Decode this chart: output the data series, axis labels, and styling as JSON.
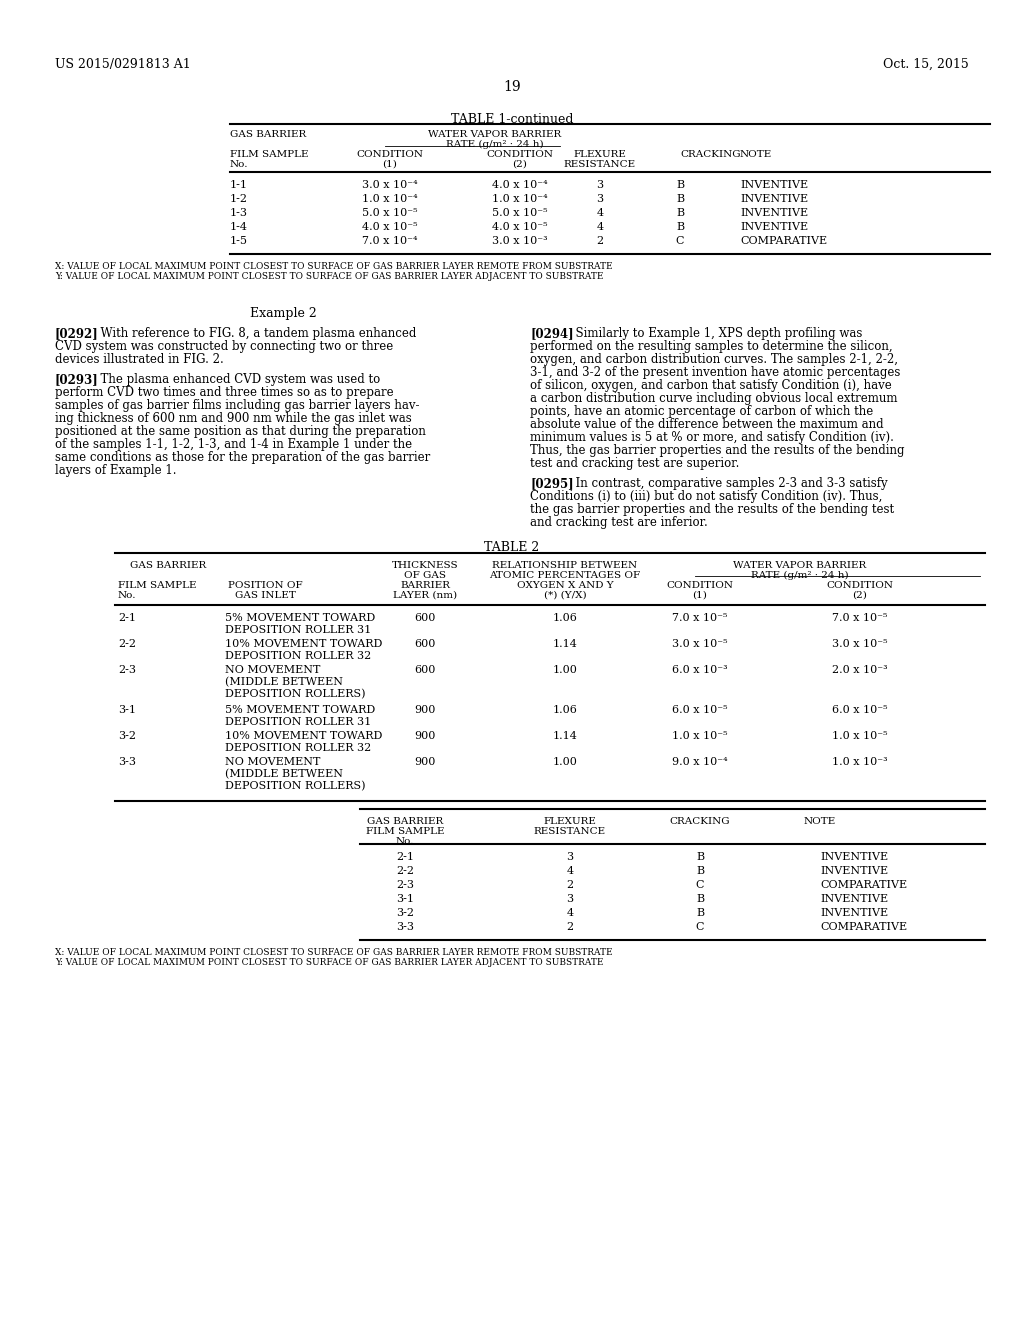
{
  "page_header_left": "US 2015/0291813 A1",
  "page_header_right": "Oct. 15, 2015",
  "page_number": "19",
  "bg_color": "#ffffff",
  "table1_continued_title": "TABLE 1-continued",
  "table1_col_headers_row1": [
    "GAS BARRIER",
    "",
    "WATER VAPOR BARRIER\nRATE (g/m² · 24 h)",
    "",
    "",
    ""
  ],
  "table1_col_headers_row2": [
    "FILM SAMPLE\nNo.",
    "CONDITION\n(1)",
    "CONDITION\n(2)",
    "FLEXURE\nRESISTANCE",
    "CRACKING",
    "NOTE"
  ],
  "table1_data": [
    [
      "1-1",
      "3.0 x 10⁻⁴",
      "4.0 x 10⁻⁴",
      "3",
      "B",
      "INVENTIVE"
    ],
    [
      "1-2",
      "1.0 x 10⁻⁴",
      "1.0 x 10⁻⁴",
      "3",
      "B",
      "INVENTIVE"
    ],
    [
      "1-3",
      "5.0 x 10⁻⁵",
      "5.0 x 10⁻⁵",
      "4",
      "B",
      "INVENTIVE"
    ],
    [
      "1-4",
      "4.0 x 10⁻⁵",
      "4.0 x 10⁻⁵",
      "4",
      "B",
      "INVENTIVE"
    ],
    [
      "1-5",
      "7.0 x 10⁻⁴",
      "3.0 x 10⁻³",
      "2",
      "C",
      "COMPARATIVE"
    ]
  ],
  "table1_footnotes": [
    "X: VALUE OF LOCAL MAXIMUM POINT CLOSEST TO SURFACE OF GAS BARRIER LAYER REMOTE FROM SUBSTRATE",
    "Y: VALUE OF LOCAL MAXIMUM POINT CLOSEST TO SURFACE OF GAS BARRIER LAYER ADJACENT TO SUBSTRATE"
  ],
  "example2_title": "Example 2",
  "para_0292": "[0292]   With reference to FIG. 8, a tandem plasma enhanced CVD system was constructed by connecting two or three devices illustrated in FIG. 2.",
  "para_0293": "[0293]   The plasma enhanced CVD system was used to perform CVD two times and three times so as to prepare samples of gas barrier films including gas barrier layers having thickness of 600 nm and 900 nm while the gas inlet was positioned at the same position as that during the preparation of the samples 1-1, 1-2, 1-3, and 1-4 in Example 1 under the same conditions as those for the preparation of the gas barrier layers of Example 1.",
  "para_0294": "[0294]   Similarly to Example 1, XPS depth profiling was performed on the resulting samples to determine the silicon, oxygen, and carbon distribution curves. The samples 2-1, 2-2, 3-1, and 3-2 of the present invention have atomic percentages of silicon, oxygen, and carbon that satisfy Condition (i), have a carbon distribution curve including obvious local extremum points, have an atomic percentage of carbon of which the absolute value of the difference between the maximum and minimum values is 5 at % or more, and satisfy Condition (iv). Thus, the gas barrier properties and the results of the bending test and cracking test are superior.",
  "para_0295": "[0295]   In contrast, comparative samples 2-3 and 3-3 satisfy Conditions (i) to (iii) but do not satisfy Condition (iv). Thus, the gas barrier properties and the results of the bending test and cracking test are inferior.",
  "table2_title": "TABLE 2",
  "table2_col_headers_row1": [
    "GAS BARRIER",
    "",
    "THICKNESS\nOF GAS",
    "RELATIONSHIP BETWEEN\nATOMIC PERCENTAGES OF",
    "WATER VAPOR BARRIER\nRATE (g/m² · 24 h)",
    ""
  ],
  "table2_col_headers_row2": [
    "FILM SAMPLE\nNo.",
    "POSITION OF\nGAS INLET",
    "BARRIER\nLAYER (nm)",
    "OXYGEN X AND Y\n(*) (Y/X)",
    "CONDITION\n(1)",
    "CONDITION\n(2)"
  ],
  "table2_data": [
    [
      "2-1",
      "5% MOVEMENT TOWARD\nDEPOSITION ROLLER 31",
      "600",
      "1.06",
      "7.0 x 10⁻⁵",
      "7.0 x 10⁻⁵"
    ],
    [
      "2-2",
      "10% MOVEMENT TOWARD\nDEPOSITION ROLLER 32",
      "600",
      "1.14",
      "3.0 x 10⁻⁵",
      "3.0 x 10⁻⁵"
    ],
    [
      "2-3",
      "NO MOVEMENT\n(MIDDLE BETWEEN\nDEPOSITION ROLLERS)",
      "600",
      "1.00",
      "6.0 x 10⁻³",
      "2.0 x 10⁻³"
    ],
    [
      "3-1",
      "5% MOVEMENT TOWARD\nDEPOSITION ROLLER 31",
      "900",
      "1.06",
      "6.0 x 10⁻⁵",
      "6.0 x 10⁻⁵"
    ],
    [
      "3-2",
      "10% MOVEMENT TOWARD\nDEPOSITION ROLLER 32",
      "900",
      "1.14",
      "1.0 x 10⁻⁵",
      "1.0 x 10⁻⁵"
    ],
    [
      "3-3",
      "NO MOVEMENT\n(MIDDLE BETWEEN\nDEPOSITION ROLLERS)",
      "900",
      "1.00",
      "9.0 x 10⁻⁴",
      "1.0 x 10⁻³"
    ]
  ],
  "table3_col_headers": [
    "GAS BARRIER\nFILM SAMPLE\nNo.",
    "FLEXURE\nRESISTANCE",
    "CRACKING",
    "NOTE"
  ],
  "table3_data": [
    [
      "2-1",
      "3",
      "B",
      "INVENTIVE"
    ],
    [
      "2-2",
      "4",
      "B",
      "INVENTIVE"
    ],
    [
      "2-3",
      "2",
      "C",
      "COMPARATIVE"
    ],
    [
      "3-1",
      "3",
      "B",
      "INVENTIVE"
    ],
    [
      "3-2",
      "4",
      "B",
      "INVENTIVE"
    ],
    [
      "3-3",
      "2",
      "C",
      "COMPARATIVE"
    ]
  ],
  "table2_footnotes": [
    "X: VALUE OF LOCAL MAXIMUM POINT CLOSEST TO SURFACE OF GAS BARRIER LAYER REMOTE FROM SUBSTRATE",
    "Y: VALUE OF LOCAL MAXIMUM POINT CLOSEST TO SURFACE OF GAS BARRIER LAYER ADJACENT TO SUBSTRATE"
  ]
}
